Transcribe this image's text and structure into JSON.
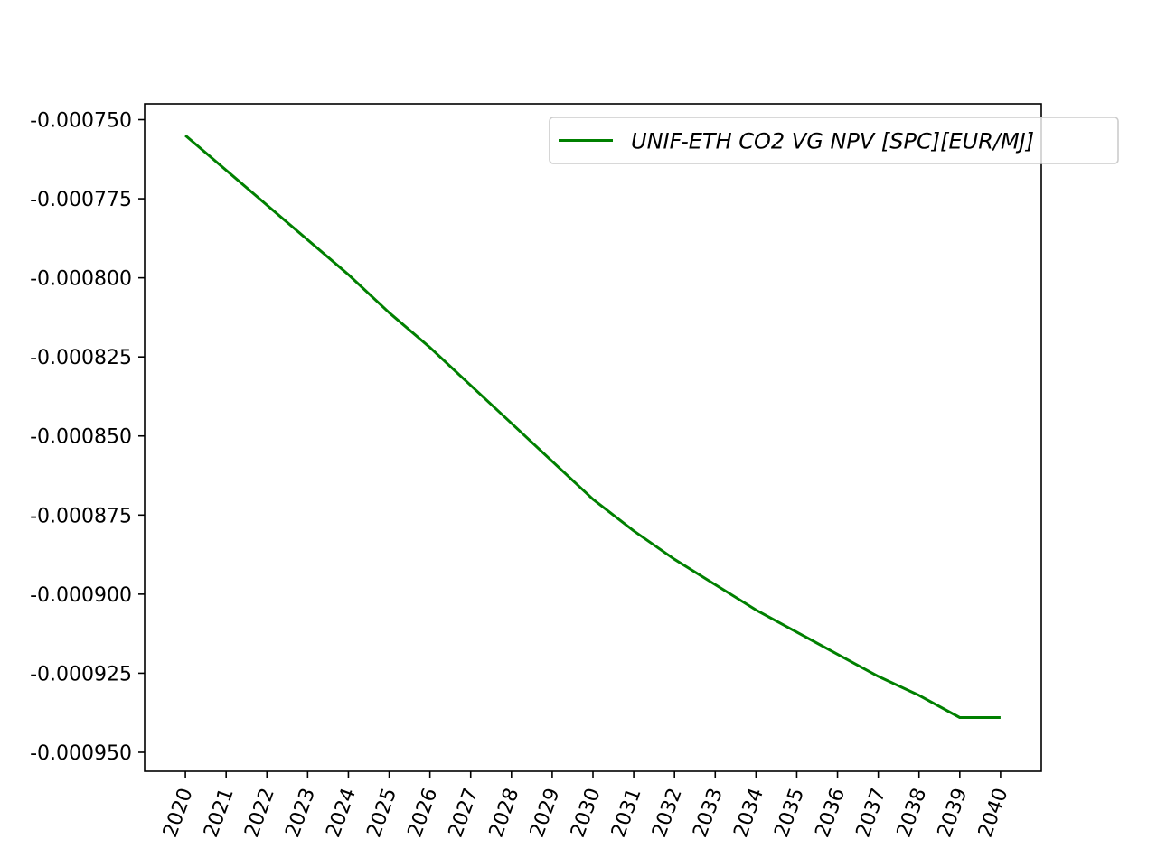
{
  "chart_data": {
    "type": "line",
    "x": [
      2020,
      2021,
      2022,
      2023,
      2024,
      2025,
      2026,
      2027,
      2028,
      2029,
      2030,
      2031,
      2032,
      2033,
      2034,
      2035,
      2036,
      2037,
      2038,
      2039,
      2040
    ],
    "x_tick_labels": [
      "2020",
      "2021",
      "2022",
      "2023",
      "2024",
      "2025",
      "2026",
      "2027",
      "2028",
      "2029",
      "2030",
      "2031",
      "2032",
      "2033",
      "2034",
      "2035",
      "2036",
      "2037",
      "2038",
      "2039",
      "2040"
    ],
    "series": [
      {
        "name": "UNIF-ETH CO2 VG NPV [SPC][EUR/MJ]",
        "color": "#008000",
        "values": [
          -0.000755,
          -0.000766,
          -0.000777,
          -0.000788,
          -0.000799,
          -0.000811,
          -0.000822,
          -0.000834,
          -0.000846,
          -0.000858,
          -0.00087,
          -0.00088,
          -0.000889,
          -0.000897,
          -0.000905,
          -0.000912,
          -0.000919,
          -0.000926,
          -0.000932,
          -0.000939,
          -0.000939
        ]
      }
    ],
    "y_ticks": [
      -0.00075,
      -0.000775,
      -0.0008,
      -0.000825,
      -0.00085,
      -0.000875,
      -0.0009,
      -0.000925,
      -0.00095
    ],
    "y_tick_labels": [
      "-0.000750",
      "-0.000775",
      "-0.000800",
      "-0.000825",
      "-0.000850",
      "-0.000875",
      "-0.000900",
      "-0.000925",
      "-0.000950"
    ],
    "xlim": [
      2019,
      2041
    ],
    "ylim": [
      -0.000956,
      -0.000745
    ],
    "grid": false,
    "legend_position": "top-right",
    "title": "",
    "xlabel": "",
    "ylabel": ""
  }
}
